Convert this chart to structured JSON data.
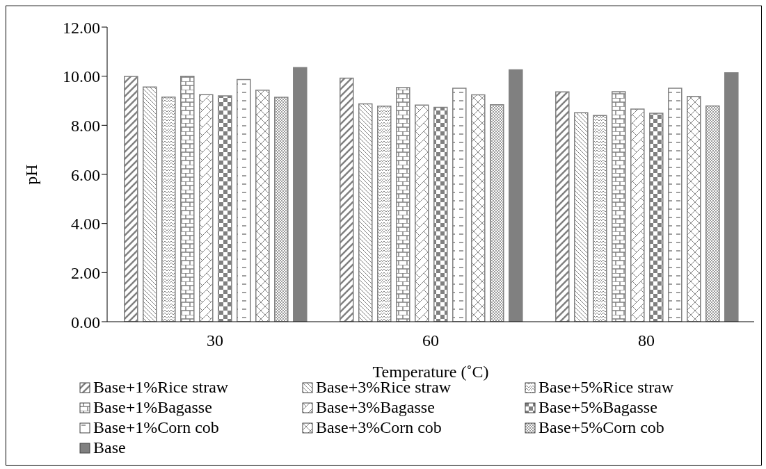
{
  "chart_data": {
    "type": "bar",
    "xlabel": "Temperature (˚C)",
    "ylabel": "pH",
    "categories": [
      "30",
      "60",
      "80"
    ],
    "series": [
      {
        "name": "Base+1%Rice straw",
        "color": "#808080",
        "values": [
          9.99,
          9.92,
          9.36
        ]
      },
      {
        "name": "Base+3%Rice straw",
        "color": "#808080",
        "values": [
          9.56,
          8.87,
          8.51
        ]
      },
      {
        "name": "Base+5%Rice straw",
        "color": "#808080",
        "values": [
          9.15,
          8.78,
          8.4
        ]
      },
      {
        "name": "Base+1%Bagasse",
        "color": "#808080",
        "values": [
          10.0,
          9.54,
          9.37
        ]
      },
      {
        "name": "Base+3%Bagasse",
        "color": "#808080",
        "values": [
          9.25,
          8.82,
          8.66
        ]
      },
      {
        "name": "Base+5%Bagasse",
        "color": "#808080",
        "values": [
          9.2,
          8.73,
          8.49
        ]
      },
      {
        "name": "Base+1%Corn cob",
        "color": "#808080",
        "values": [
          9.86,
          9.51,
          9.51
        ]
      },
      {
        "name": "Base+3%Corn cob",
        "color": "#808080",
        "values": [
          9.43,
          9.24,
          9.18
        ]
      },
      {
        "name": "Base+5%Corn cob",
        "color": "#808080",
        "values": [
          9.14,
          8.84,
          8.79
        ]
      },
      {
        "name": "Base",
        "color": "#808080",
        "values": [
          10.35,
          10.26,
          10.14
        ]
      }
    ],
    "ylim": [
      0,
      12
    ],
    "yticks": [
      {
        "value": 0,
        "label": "0.00"
      },
      {
        "value": 2,
        "label": "2.00"
      },
      {
        "value": 4,
        "label": "4.00"
      },
      {
        "value": 6,
        "label": "6.00"
      },
      {
        "value": 8,
        "label": "8.00"
      },
      {
        "value": 10,
        "label": "10.00"
      },
      {
        "value": 12,
        "label": "12.00"
      }
    ],
    "legend": "bottom",
    "grid": false
  }
}
